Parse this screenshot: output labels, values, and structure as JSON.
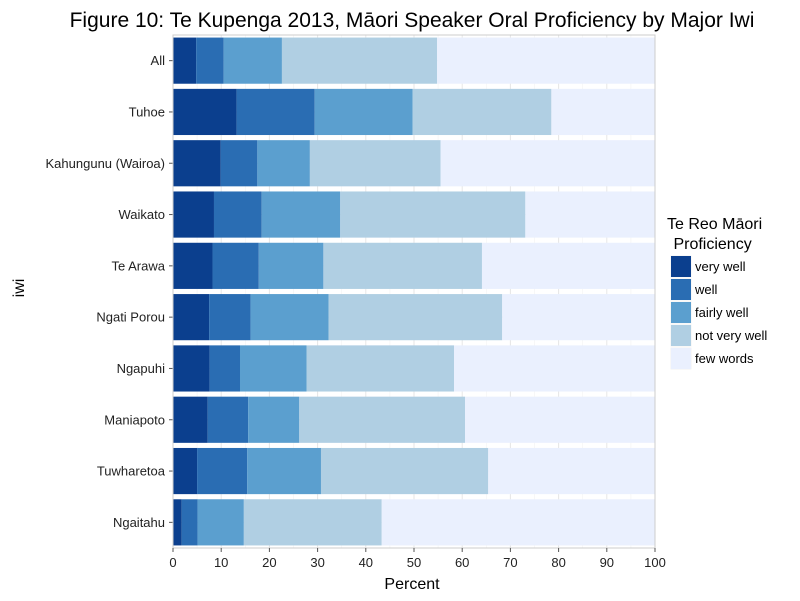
{
  "chart_data": {
    "type": "bar",
    "orientation": "horizontal",
    "stacked": true,
    "title": "Figure 10: Te Kupenga 2013, Māori Speaker Oral Proficiency by Major Iwi",
    "xlabel": "Percent",
    "ylabel": "iwi",
    "xlim": [
      0,
      100
    ],
    "x_ticks": [
      0,
      10,
      20,
      30,
      40,
      50,
      60,
      70,
      80,
      90,
      100
    ],
    "grid": true,
    "legend_position": "right",
    "legend_title_line1": "Te Reo Māori",
    "legend_title_line2": " Proficiency",
    "categories": [
      "All",
      "Tuhoe",
      "Kahungunu (Wairoa)",
      "Waikato",
      "Te Arawa",
      "Ngati Porou",
      "Ngapuhi",
      "Maniapoto",
      "Tuwharetoa",
      "Ngaitahu"
    ],
    "series": [
      {
        "name": "very well",
        "color": "#0b3f8e",
        "values": [
          4.8,
          13.2,
          9.9,
          8.5,
          8.2,
          7.5,
          7.6,
          7.2,
          5.0,
          1.8
        ]
      },
      {
        "name": "well",
        "color": "#2a6db3",
        "values": [
          5.7,
          16.2,
          7.6,
          9.9,
          9.6,
          8.6,
          6.3,
          8.4,
          10.4,
          3.3
        ]
      },
      {
        "name": "fairly well",
        "color": "#5b9fcf",
        "values": [
          12.1,
          20.3,
          10.9,
          16.3,
          13.4,
          16.2,
          13.8,
          10.6,
          15.3,
          9.6
        ]
      },
      {
        "name": "not very well",
        "color": "#b0cfe3",
        "values": [
          32.2,
          28.8,
          27.1,
          38.4,
          32.9,
          36.0,
          30.6,
          34.4,
          34.7,
          28.6
        ]
      },
      {
        "name": "few words",
        "color": "#eaf0fe",
        "values": [
          45.2,
          21.5,
          44.5,
          26.9,
          35.9,
          31.7,
          41.7,
          39.4,
          34.6,
          56.7
        ]
      }
    ]
  }
}
